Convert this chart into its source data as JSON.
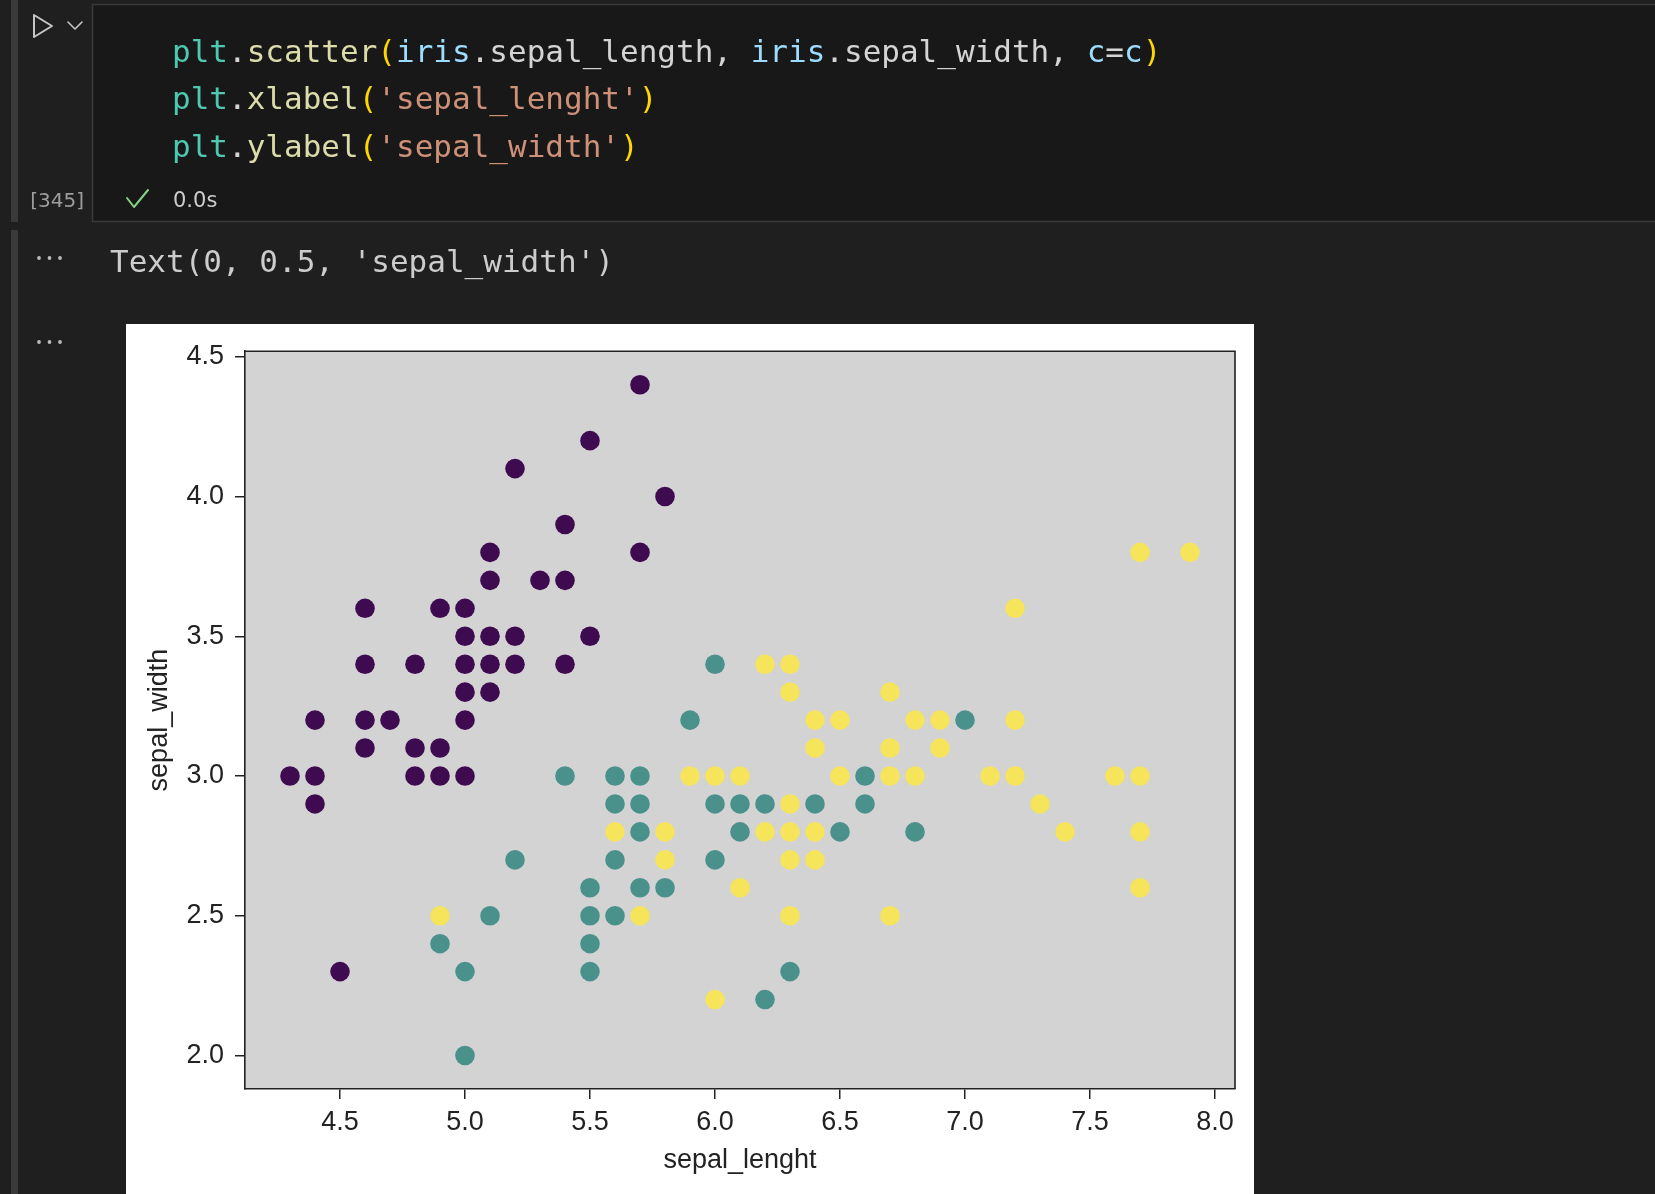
{
  "chart_data": {
    "type": "scatter",
    "xlabel": "sepal_lenght",
    "ylabel": "sepal_width",
    "annotations": [
      "plt.scatter(iris.sepal_length, iris.sepal_width, c=c)",
      "plt.xlabel('sepal_lenght')",
      "plt.ylabel('sepal_width')",
      "[345]",
      "0.0s",
      "Text(0, 0.5, 'sepal_width')"
    ],
    "xlim": [
      4.12,
      8.08
    ],
    "ylim": [
      1.88,
      4.52
    ],
    "xticks": [
      4.5,
      {
        "value": 5,
        "label": "5.0"
      },
      5.5,
      {
        "value": 6,
        "label": "6.0"
      },
      6.5,
      {
        "value": 7,
        "label": "7.0"
      },
      7.5,
      {
        "value": 8,
        "label": "8.0"
      }
    ],
    "yticks": [
      {
        "value": 2,
        "label": "2.0"
      },
      2.5,
      {
        "value": 3,
        "label": "3.0"
      },
      3.5,
      {
        "value": 4,
        "label": "4.0"
      },
      4.5
    ],
    "grid": false,
    "legend": false,
    "marker": "circle",
    "series": [
      {
        "color": "#3f0b50",
        "x": [
          4.3,
          4.4,
          4.4,
          4.4,
          4.5,
          4.6,
          4.6,
          4.6,
          4.6,
          4.7,
          4.8,
          4.8,
          4.8,
          4.9,
          4.9,
          4.9,
          5.0,
          5.0,
          5.0,
          5.0,
          5.0,
          5.0,
          5.1,
          5.1,
          5.1,
          5.1,
          5.1,
          5.2,
          5.2,
          5.2,
          5.3,
          5.4,
          5.4,
          5.4,
          5.5,
          5.5,
          5.7,
          5.7,
          5.8
        ],
        "values": [
          3.0,
          2.9,
          3.0,
          3.2,
          2.3,
          3.1,
          3.2,
          3.4,
          3.6,
          3.2,
          3.0,
          3.1,
          3.4,
          3.0,
          3.1,
          3.6,
          3.0,
          3.2,
          3.3,
          3.4,
          3.5,
          3.6,
          3.3,
          3.4,
          3.5,
          3.7,
          3.8,
          3.4,
          3.5,
          4.1,
          3.7,
          3.4,
          3.7,
          3.9,
          3.5,
          4.2,
          3.8,
          4.4,
          4.0
        ]
      },
      {
        "color": "#4a918c",
        "x": [
          4.9,
          5.0,
          5.0,
          5.1,
          5.2,
          5.4,
          5.5,
          5.5,
          5.5,
          5.5,
          5.6,
          5.6,
          5.6,
          5.6,
          5.7,
          5.7,
          5.7,
          5.7,
          5.8,
          5.9,
          6.0,
          6.0,
          6.0,
          6.1,
          6.1,
          6.2,
          6.2,
          6.3,
          6.4,
          6.5,
          6.6,
          6.6,
          6.8,
          7.0
        ],
        "values": [
          2.4,
          2.0,
          2.3,
          2.5,
          2.7,
          3.0,
          2.3,
          2.4,
          2.5,
          2.6,
          2.5,
          2.7,
          2.9,
          3.0,
          2.6,
          2.8,
          2.9,
          3.0,
          2.6,
          3.2,
          2.7,
          2.9,
          3.4,
          2.8,
          2.9,
          2.2,
          2.9,
          2.3,
          2.9,
          2.8,
          2.9,
          3.0,
          2.8,
          3.2
        ]
      },
      {
        "color": "#f6e45a",
        "x": [
          4.9,
          5.6,
          5.7,
          5.8,
          5.8,
          5.9,
          6.0,
          6.0,
          6.1,
          6.1,
          6.2,
          6.2,
          6.3,
          6.3,
          6.3,
          6.3,
          6.3,
          6.3,
          6.4,
          6.4,
          6.4,
          6.4,
          6.5,
          6.5,
          6.7,
          6.7,
          6.7,
          6.7,
          6.8,
          6.8,
          6.9,
          6.9,
          7.1,
          7.2,
          7.2,
          7.2,
          7.3,
          7.4,
          7.6,
          7.7,
          7.7,
          7.7,
          7.7,
          7.9
        ],
        "values": [
          2.5,
          2.8,
          2.5,
          2.7,
          2.8,
          3.0,
          2.2,
          3.0,
          2.6,
          3.0,
          2.8,
          3.4,
          2.5,
          2.7,
          2.8,
          2.9,
          3.3,
          3.4,
          2.7,
          2.8,
          3.1,
          3.2,
          3.0,
          3.2,
          2.5,
          3.0,
          3.1,
          3.3,
          3.0,
          3.2,
          3.1,
          3.2,
          3.0,
          3.0,
          3.2,
          3.6,
          2.9,
          2.8,
          3.0,
          2.6,
          2.8,
          3.0,
          3.8,
          3.8
        ]
      }
    ]
  }
}
